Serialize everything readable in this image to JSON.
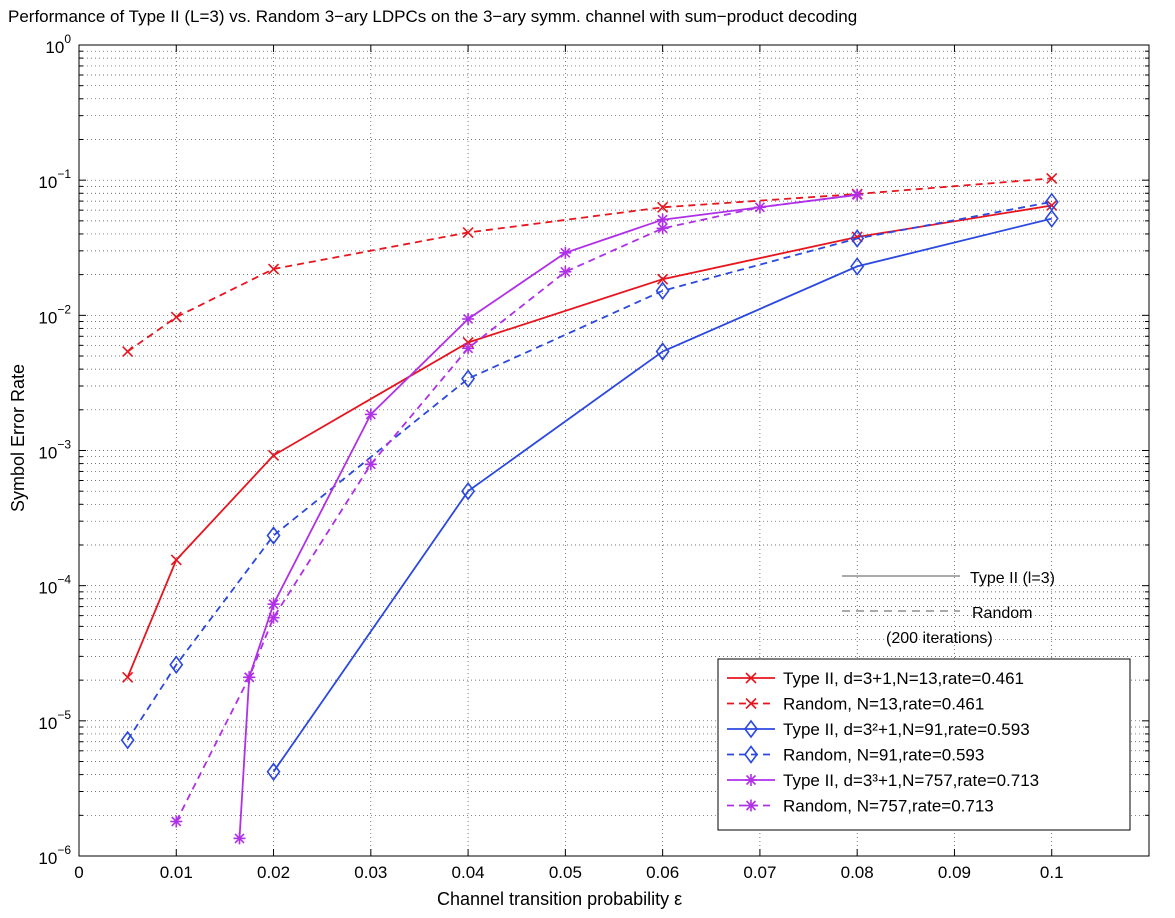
{
  "chart_data": {
    "type": "line",
    "title": "Performance of Type II (L=3) vs. Random 3−ary LDPCs on the 3−ary symm. channel with sum−product decoding",
    "xlabel": "Channel transition probability ε",
    "ylabel": "Symbol Error Rate",
    "xlim": [
      0,
      0.11
    ],
    "ylim": [
      1e-06,
      1
    ],
    "yscale": "log",
    "grid": true,
    "x_ticks": [
      "0",
      "0.01",
      "0.02",
      "0.03",
      "0.04",
      "0.05",
      "0.06",
      "0.07",
      "0.08",
      "0.09",
      "0.1"
    ],
    "y_ticks": [
      {
        "base": "10",
        "exp": "−6"
      },
      {
        "base": "10",
        "exp": "−5"
      },
      {
        "base": "10",
        "exp": "−4"
      },
      {
        "base": "10",
        "exp": "−3"
      },
      {
        "base": "10",
        "exp": "−2"
      },
      {
        "base": "10",
        "exp": "−1"
      },
      {
        "base": "10",
        "exp": "0"
      }
    ],
    "series": [
      {
        "name": "Type II, d=3+1,N=13,rate=0.461",
        "color": "#e8141e",
        "dash": "solid",
        "marker": "x",
        "x": [
          0.005,
          0.01,
          0.02,
          0.04,
          0.06,
          0.08,
          0.1
        ],
        "y": [
          2.1e-05,
          0.000155,
          0.00092,
          0.0063,
          0.0185,
          0.038,
          0.065
        ]
      },
      {
        "name": "Random, N=13,rate=0.461",
        "color": "#e8141e",
        "dash": "dashed",
        "marker": "x",
        "x": [
          0.005,
          0.01,
          0.02,
          0.04,
          0.06,
          0.08,
          0.1
        ],
        "y": [
          0.0054,
          0.0097,
          0.022,
          0.041,
          0.063,
          0.079,
          0.103
        ]
      },
      {
        "name": "Type II, d=3²+1,N=91,rate=0.593",
        "color": "#2b48e0",
        "dash": "solid",
        "marker": "diamond",
        "x": [
          0.02,
          0.04,
          0.06,
          0.08,
          0.1
        ],
        "y": [
          4.2e-06,
          0.0005,
          0.0054,
          0.023,
          0.052
        ]
      },
      {
        "name": "Random, N=91,rate=0.593",
        "color": "#2b48e0",
        "dash": "dashed",
        "marker": "diamond",
        "x": [
          0.005,
          0.01,
          0.02,
          0.04,
          0.06,
          0.08,
          0.1
        ],
        "y": [
          7.2e-06,
          2.6e-05,
          0.000235,
          0.0034,
          0.0152,
          0.037,
          0.069
        ]
      },
      {
        "name": "Type II, d=3³+1,N=757,rate=0.713",
        "color": "#b030e8",
        "dash": "solid",
        "marker": "star",
        "x": [
          0.0165,
          0.0175,
          0.02,
          0.03,
          0.04,
          0.05,
          0.06,
          0.08
        ],
        "y": [
          1.35e-06,
          2.1e-05,
          7.3e-05,
          0.00185,
          0.0094,
          0.029,
          0.051,
          0.078
        ]
      },
      {
        "name": "Random, N=757,rate=0.713",
        "color": "#b030e8",
        "dash": "dashed",
        "marker": "star",
        "x": [
          0.01,
          0.0175,
          0.02,
          0.03,
          0.04,
          0.05,
          0.06,
          0.07,
          0.08
        ],
        "y": [
          1.8e-06,
          2.1e-05,
          5.8e-05,
          0.00079,
          0.0057,
          0.021,
          0.044,
          0.063,
          0.078
        ]
      }
    ],
    "legend_position": "bottom-right",
    "annotations": {
      "solid_label": "Type II (l=3)",
      "dashed_label": "Random",
      "iterations": "(200 iterations)"
    }
  }
}
